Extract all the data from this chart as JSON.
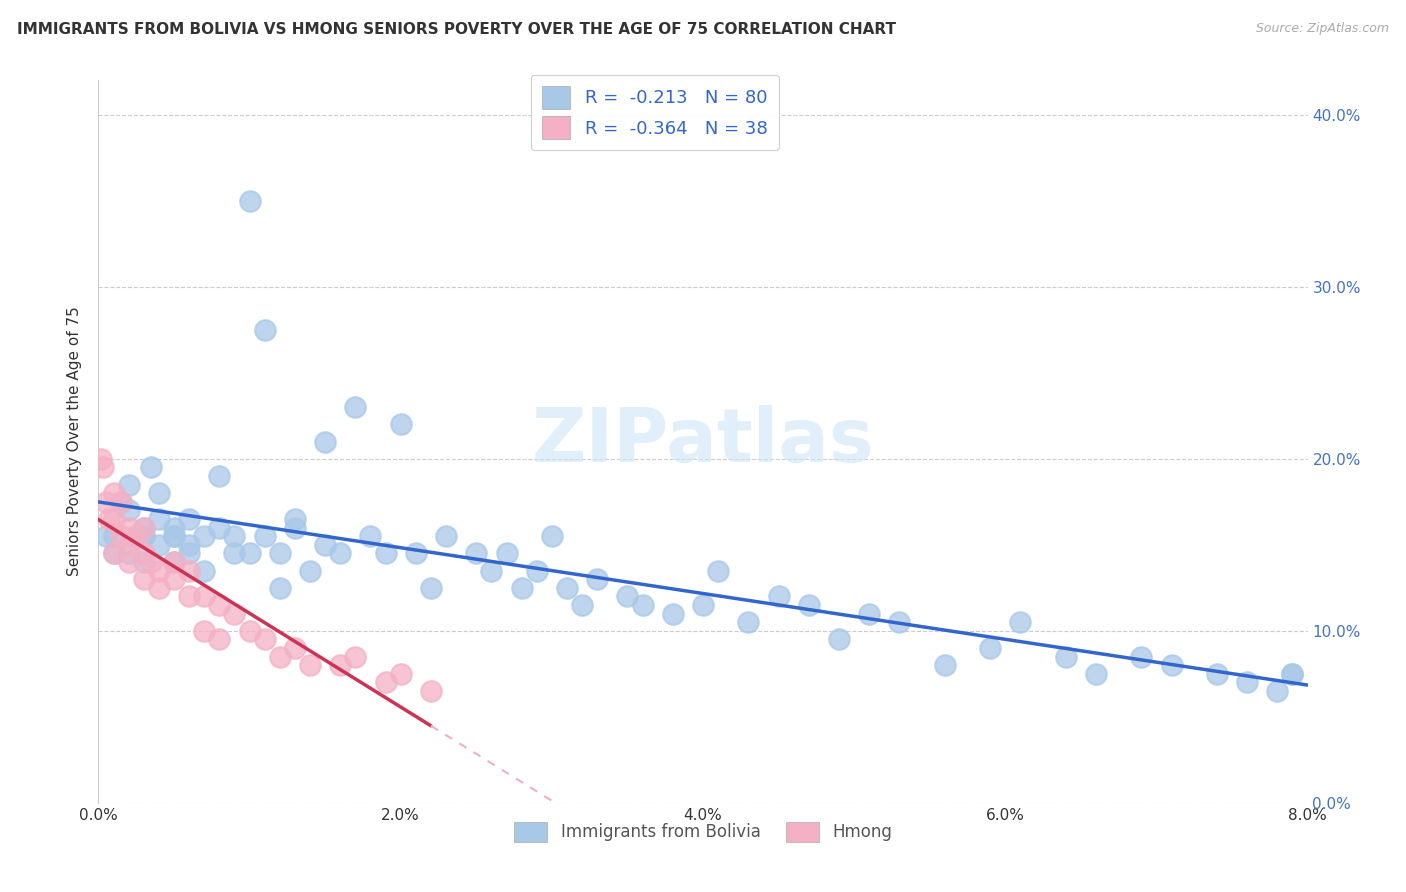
{
  "title": "IMMIGRANTS FROM BOLIVIA VS HMONG SENIORS POVERTY OVER THE AGE OF 75 CORRELATION CHART",
  "source": "Source: ZipAtlas.com",
  "ylabel": "Seniors Poverty Over the Age of 75",
  "xmin": 0.0,
  "xmax": 0.08,
  "ymin": 0.0,
  "ymax": 0.42,
  "bolivia_color": "#a8c8e8",
  "hmong_color": "#f4b0c4",
  "bolivia_line_color": "#3366cc",
  "hmong_line_solid_color": "#cc3355",
  "hmong_line_dash_color": "#f0b0c0",
  "bolivia_R": -0.213,
  "bolivia_N": 80,
  "hmong_R": -0.364,
  "hmong_N": 38,
  "watermark": "ZIPatlas",
  "xticks": [
    0.0,
    0.02,
    0.04,
    0.06,
    0.08
  ],
  "yticks": [
    0.0,
    0.1,
    0.2,
    0.3,
    0.4
  ],
  "right_tick_color": "#4472c4",
  "grid_color": "#cccccc",
  "title_fontsize": 11,
  "axis_label_fontsize": 11,
  "tick_fontsize": 11,
  "bolivia_x": [
    0.0005,
    0.001,
    0.001,
    0.0015,
    0.002,
    0.002,
    0.002,
    0.0025,
    0.003,
    0.003,
    0.003,
    0.003,
    0.0035,
    0.004,
    0.004,
    0.004,
    0.005,
    0.005,
    0.005,
    0.005,
    0.006,
    0.006,
    0.006,
    0.007,
    0.007,
    0.008,
    0.008,
    0.009,
    0.009,
    0.01,
    0.01,
    0.011,
    0.011,
    0.012,
    0.012,
    0.013,
    0.013,
    0.014,
    0.015,
    0.015,
    0.016,
    0.017,
    0.018,
    0.019,
    0.02,
    0.021,
    0.022,
    0.023,
    0.025,
    0.026,
    0.027,
    0.028,
    0.029,
    0.03,
    0.031,
    0.032,
    0.033,
    0.035,
    0.036,
    0.038,
    0.04,
    0.041,
    0.043,
    0.045,
    0.047,
    0.049,
    0.051,
    0.053,
    0.056,
    0.059,
    0.061,
    0.064,
    0.066,
    0.069,
    0.071,
    0.074,
    0.076,
    0.078,
    0.079,
    0.079
  ],
  "bolivia_y": [
    0.155,
    0.155,
    0.145,
    0.175,
    0.145,
    0.17,
    0.185,
    0.155,
    0.14,
    0.155,
    0.16,
    0.155,
    0.195,
    0.15,
    0.165,
    0.18,
    0.155,
    0.14,
    0.16,
    0.155,
    0.15,
    0.165,
    0.145,
    0.155,
    0.135,
    0.16,
    0.19,
    0.145,
    0.155,
    0.145,
    0.35,
    0.155,
    0.275,
    0.145,
    0.125,
    0.16,
    0.165,
    0.135,
    0.15,
    0.21,
    0.145,
    0.23,
    0.155,
    0.145,
    0.22,
    0.145,
    0.125,
    0.155,
    0.145,
    0.135,
    0.145,
    0.125,
    0.135,
    0.155,
    0.125,
    0.115,
    0.13,
    0.12,
    0.115,
    0.11,
    0.115,
    0.135,
    0.105,
    0.12,
    0.115,
    0.095,
    0.11,
    0.105,
    0.08,
    0.09,
    0.105,
    0.085,
    0.075,
    0.085,
    0.08,
    0.075,
    0.07,
    0.065,
    0.075,
    0.075
  ],
  "hmong_x": [
    0.0002,
    0.0003,
    0.0005,
    0.0007,
    0.001,
    0.001,
    0.001,
    0.0015,
    0.0015,
    0.002,
    0.002,
    0.002,
    0.0025,
    0.003,
    0.003,
    0.003,
    0.0035,
    0.004,
    0.004,
    0.005,
    0.005,
    0.006,
    0.006,
    0.007,
    0.007,
    0.008,
    0.008,
    0.009,
    0.01,
    0.011,
    0.012,
    0.013,
    0.014,
    0.016,
    0.017,
    0.019,
    0.02,
    0.022
  ],
  "hmong_y": [
    0.2,
    0.195,
    0.175,
    0.165,
    0.18,
    0.165,
    0.145,
    0.175,
    0.155,
    0.16,
    0.15,
    0.14,
    0.155,
    0.16,
    0.145,
    0.13,
    0.14,
    0.135,
    0.125,
    0.14,
    0.13,
    0.135,
    0.12,
    0.12,
    0.1,
    0.115,
    0.095,
    0.11,
    0.1,
    0.095,
    0.085,
    0.09,
    0.08,
    0.08,
    0.085,
    0.07,
    0.075,
    0.065
  ]
}
